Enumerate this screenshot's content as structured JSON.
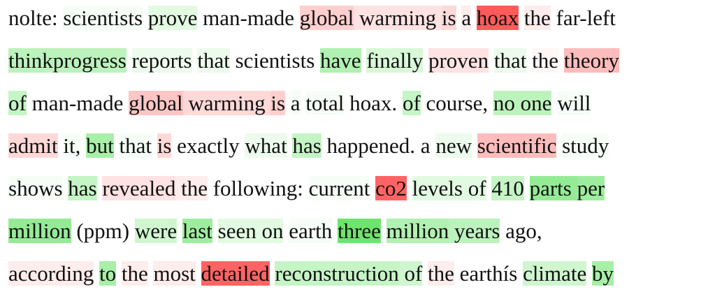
{
  "colors": {
    "text": "#111111",
    "background": "#ffffff",
    "neg": [
      255,
      40,
      40
    ],
    "pos": [
      40,
      215,
      40
    ]
  },
  "lines": [
    [
      {
        "t": "nolte:",
        "w": 0
      },
      {
        "t": " ",
        "w": 0
      },
      {
        "t": "scientists",
        "w": 0.05
      },
      {
        "t": " ",
        "w": 0
      },
      {
        "t": "prove",
        "w": 0.15
      },
      {
        "t": " ",
        "w": 0
      },
      {
        "t": "man-made",
        "w": 0
      },
      {
        "t": " ",
        "w": 0
      },
      {
        "t": "global",
        "w": -0.25
      },
      {
        "t": " ",
        "w": -0.15
      },
      {
        "t": "warming",
        "w": -0.15
      },
      {
        "t": " ",
        "w": -0.15
      },
      {
        "t": "is",
        "w": -0.2
      },
      {
        "t": " ",
        "w": 0
      },
      {
        "t": "a",
        "w": -0.1
      },
      {
        "t": " ",
        "w": 0
      },
      {
        "t": "hoax",
        "w": -0.85
      },
      {
        "t": " ",
        "w": 0
      },
      {
        "t": "the",
        "w": -0.1
      },
      {
        "t": " ",
        "w": 0
      },
      {
        "t": "far-left",
        "w": 0
      }
    ],
    [
      {
        "t": "thinkprogress",
        "w": 0.35
      },
      {
        "t": " ",
        "w": 0
      },
      {
        "t": "reports",
        "w": 0.1
      },
      {
        "t": " ",
        "w": 0
      },
      {
        "t": "that",
        "w": 0.1
      },
      {
        "t": " ",
        "w": 0
      },
      {
        "t": "scientists",
        "w": 0
      },
      {
        "t": " ",
        "w": 0
      },
      {
        "t": "have",
        "w": 0.4
      },
      {
        "t": " ",
        "w": 0
      },
      {
        "t": "finally",
        "w": 0.2
      },
      {
        "t": " ",
        "w": 0
      },
      {
        "t": "proven",
        "w": -0.15
      },
      {
        "t": " ",
        "w": 0
      },
      {
        "t": "that",
        "w": 0.1
      },
      {
        "t": " ",
        "w": 0
      },
      {
        "t": "the",
        "w": -0.05
      },
      {
        "t": " ",
        "w": 0
      },
      {
        "t": "theory",
        "w": -0.35
      }
    ],
    [
      {
        "t": "of",
        "w": 0.3
      },
      {
        "t": " ",
        "w": 0
      },
      {
        "t": "man-made",
        "w": 0
      },
      {
        "t": " ",
        "w": 0
      },
      {
        "t": "global",
        "w": -0.3
      },
      {
        "t": " ",
        "w": -0.2
      },
      {
        "t": "warming",
        "w": -0.2
      },
      {
        "t": " ",
        "w": -0.2
      },
      {
        "t": "is",
        "w": -0.25
      },
      {
        "t": " ",
        "w": 0
      },
      {
        "t": "a",
        "w": 0.05
      },
      {
        "t": " ",
        "w": 0
      },
      {
        "t": "total",
        "w": 0.05
      },
      {
        "t": " ",
        "w": 0
      },
      {
        "t": "hoax.",
        "w": 0
      },
      {
        "t": " ",
        "w": 0
      },
      {
        "t": "of",
        "w": 0.3
      },
      {
        "t": " ",
        "w": 0
      },
      {
        "t": "course,",
        "w": 0
      },
      {
        "t": " ",
        "w": 0
      },
      {
        "t": "no",
        "w": 0.35
      },
      {
        "t": " ",
        "w": 0.35
      },
      {
        "t": "one",
        "w": 0.35
      },
      {
        "t": " ",
        "w": 0
      },
      {
        "t": "will",
        "w": 0.05
      }
    ],
    [
      {
        "t": "admit",
        "w": -0.2
      },
      {
        "t": " ",
        "w": 0
      },
      {
        "t": "it,",
        "w": 0.05
      },
      {
        "t": " ",
        "w": 0
      },
      {
        "t": "but",
        "w": 0.45
      },
      {
        "t": " ",
        "w": 0
      },
      {
        "t": "that",
        "w": 0.05
      },
      {
        "t": " ",
        "w": 0
      },
      {
        "t": "is",
        "w": -0.2
      },
      {
        "t": " ",
        "w": 0
      },
      {
        "t": "exactly",
        "w": 0
      },
      {
        "t": " ",
        "w": 0
      },
      {
        "t": "what",
        "w": 0.1
      },
      {
        "t": " ",
        "w": 0
      },
      {
        "t": "has",
        "w": 0.3
      },
      {
        "t": " ",
        "w": 0
      },
      {
        "t": "happened.",
        "w": 0
      },
      {
        "t": " ",
        "w": 0
      },
      {
        "t": "a",
        "w": 0
      },
      {
        "t": " ",
        "w": 0
      },
      {
        "t": "new",
        "w": 0.1
      },
      {
        "t": " ",
        "w": 0
      },
      {
        "t": "scientific",
        "w": -0.35
      },
      {
        "t": " ",
        "w": 0
      },
      {
        "t": "study",
        "w": 0.05
      }
    ],
    [
      {
        "t": "shows",
        "w": 0.05
      },
      {
        "t": " ",
        "w": 0
      },
      {
        "t": "has",
        "w": 0.3
      },
      {
        "t": " ",
        "w": 0
      },
      {
        "t": "revealed",
        "w": -0.15
      },
      {
        "t": " ",
        "w": -0.1
      },
      {
        "t": "the",
        "w": -0.1
      },
      {
        "t": " ",
        "w": 0
      },
      {
        "t": "following:",
        "w": 0
      },
      {
        "t": " ",
        "w": 0
      },
      {
        "t": "current",
        "w": 0.05
      },
      {
        "t": " ",
        "w": 0
      },
      {
        "t": "co2",
        "w": -0.8
      },
      {
        "t": " ",
        "w": 0
      },
      {
        "t": "levels",
        "w": 0.15
      },
      {
        "t": " ",
        "w": 0.15
      },
      {
        "t": "of",
        "w": 0.15
      },
      {
        "t": " ",
        "w": 0
      },
      {
        "t": "410",
        "w": 0.3
      },
      {
        "t": " ",
        "w": 0
      },
      {
        "t": "parts",
        "w": 0.55
      },
      {
        "t": " ",
        "w": 0.55
      },
      {
        "t": "per",
        "w": 0.5
      }
    ],
    [
      {
        "t": "million",
        "w": 0.55
      },
      {
        "t": " ",
        "w": 0
      },
      {
        "t": "(ppm)",
        "w": 0
      },
      {
        "t": " ",
        "w": 0
      },
      {
        "t": "were",
        "w": 0.25
      },
      {
        "t": " ",
        "w": 0
      },
      {
        "t": "last",
        "w": 0.5
      },
      {
        "t": " ",
        "w": 0
      },
      {
        "t": "seen",
        "w": 0.15
      },
      {
        "t": " ",
        "w": 0.15
      },
      {
        "t": "on",
        "w": 0.15
      },
      {
        "t": " ",
        "w": 0
      },
      {
        "t": "earth",
        "w": 0.05
      },
      {
        "t": " ",
        "w": 0
      },
      {
        "t": "three",
        "w": 0.75
      },
      {
        "t": " ",
        "w": 0
      },
      {
        "t": "million",
        "w": 0.4
      },
      {
        "t": " ",
        "w": 0.35
      },
      {
        "t": "years",
        "w": 0.35
      },
      {
        "t": " ",
        "w": 0
      },
      {
        "t": "ago,",
        "w": 0
      }
    ],
    [
      {
        "t": "according",
        "w": -0.1
      },
      {
        "t": " ",
        "w": 0
      },
      {
        "t": "to",
        "w": 0.45
      },
      {
        "t": " ",
        "w": 0
      },
      {
        "t": "the",
        "w": -0.1
      },
      {
        "t": " ",
        "w": 0
      },
      {
        "t": "most",
        "w": -0.1
      },
      {
        "t": " ",
        "w": 0
      },
      {
        "t": "detailed",
        "w": -0.8
      },
      {
        "t": " ",
        "w": 0
      },
      {
        "t": "reconstruction",
        "w": 0.3
      },
      {
        "t": " ",
        "w": 0.25
      },
      {
        "t": "of",
        "w": 0.25
      },
      {
        "t": " ",
        "w": 0
      },
      {
        "t": "the",
        "w": -0.1
      },
      {
        "t": " ",
        "w": 0
      },
      {
        "t": "earthís",
        "w": 0
      },
      {
        "t": " ",
        "w": 0
      },
      {
        "t": "climate",
        "w": 0.25
      },
      {
        "t": " ",
        "w": 0
      },
      {
        "t": "by",
        "w": 0.45
      }
    ]
  ]
}
